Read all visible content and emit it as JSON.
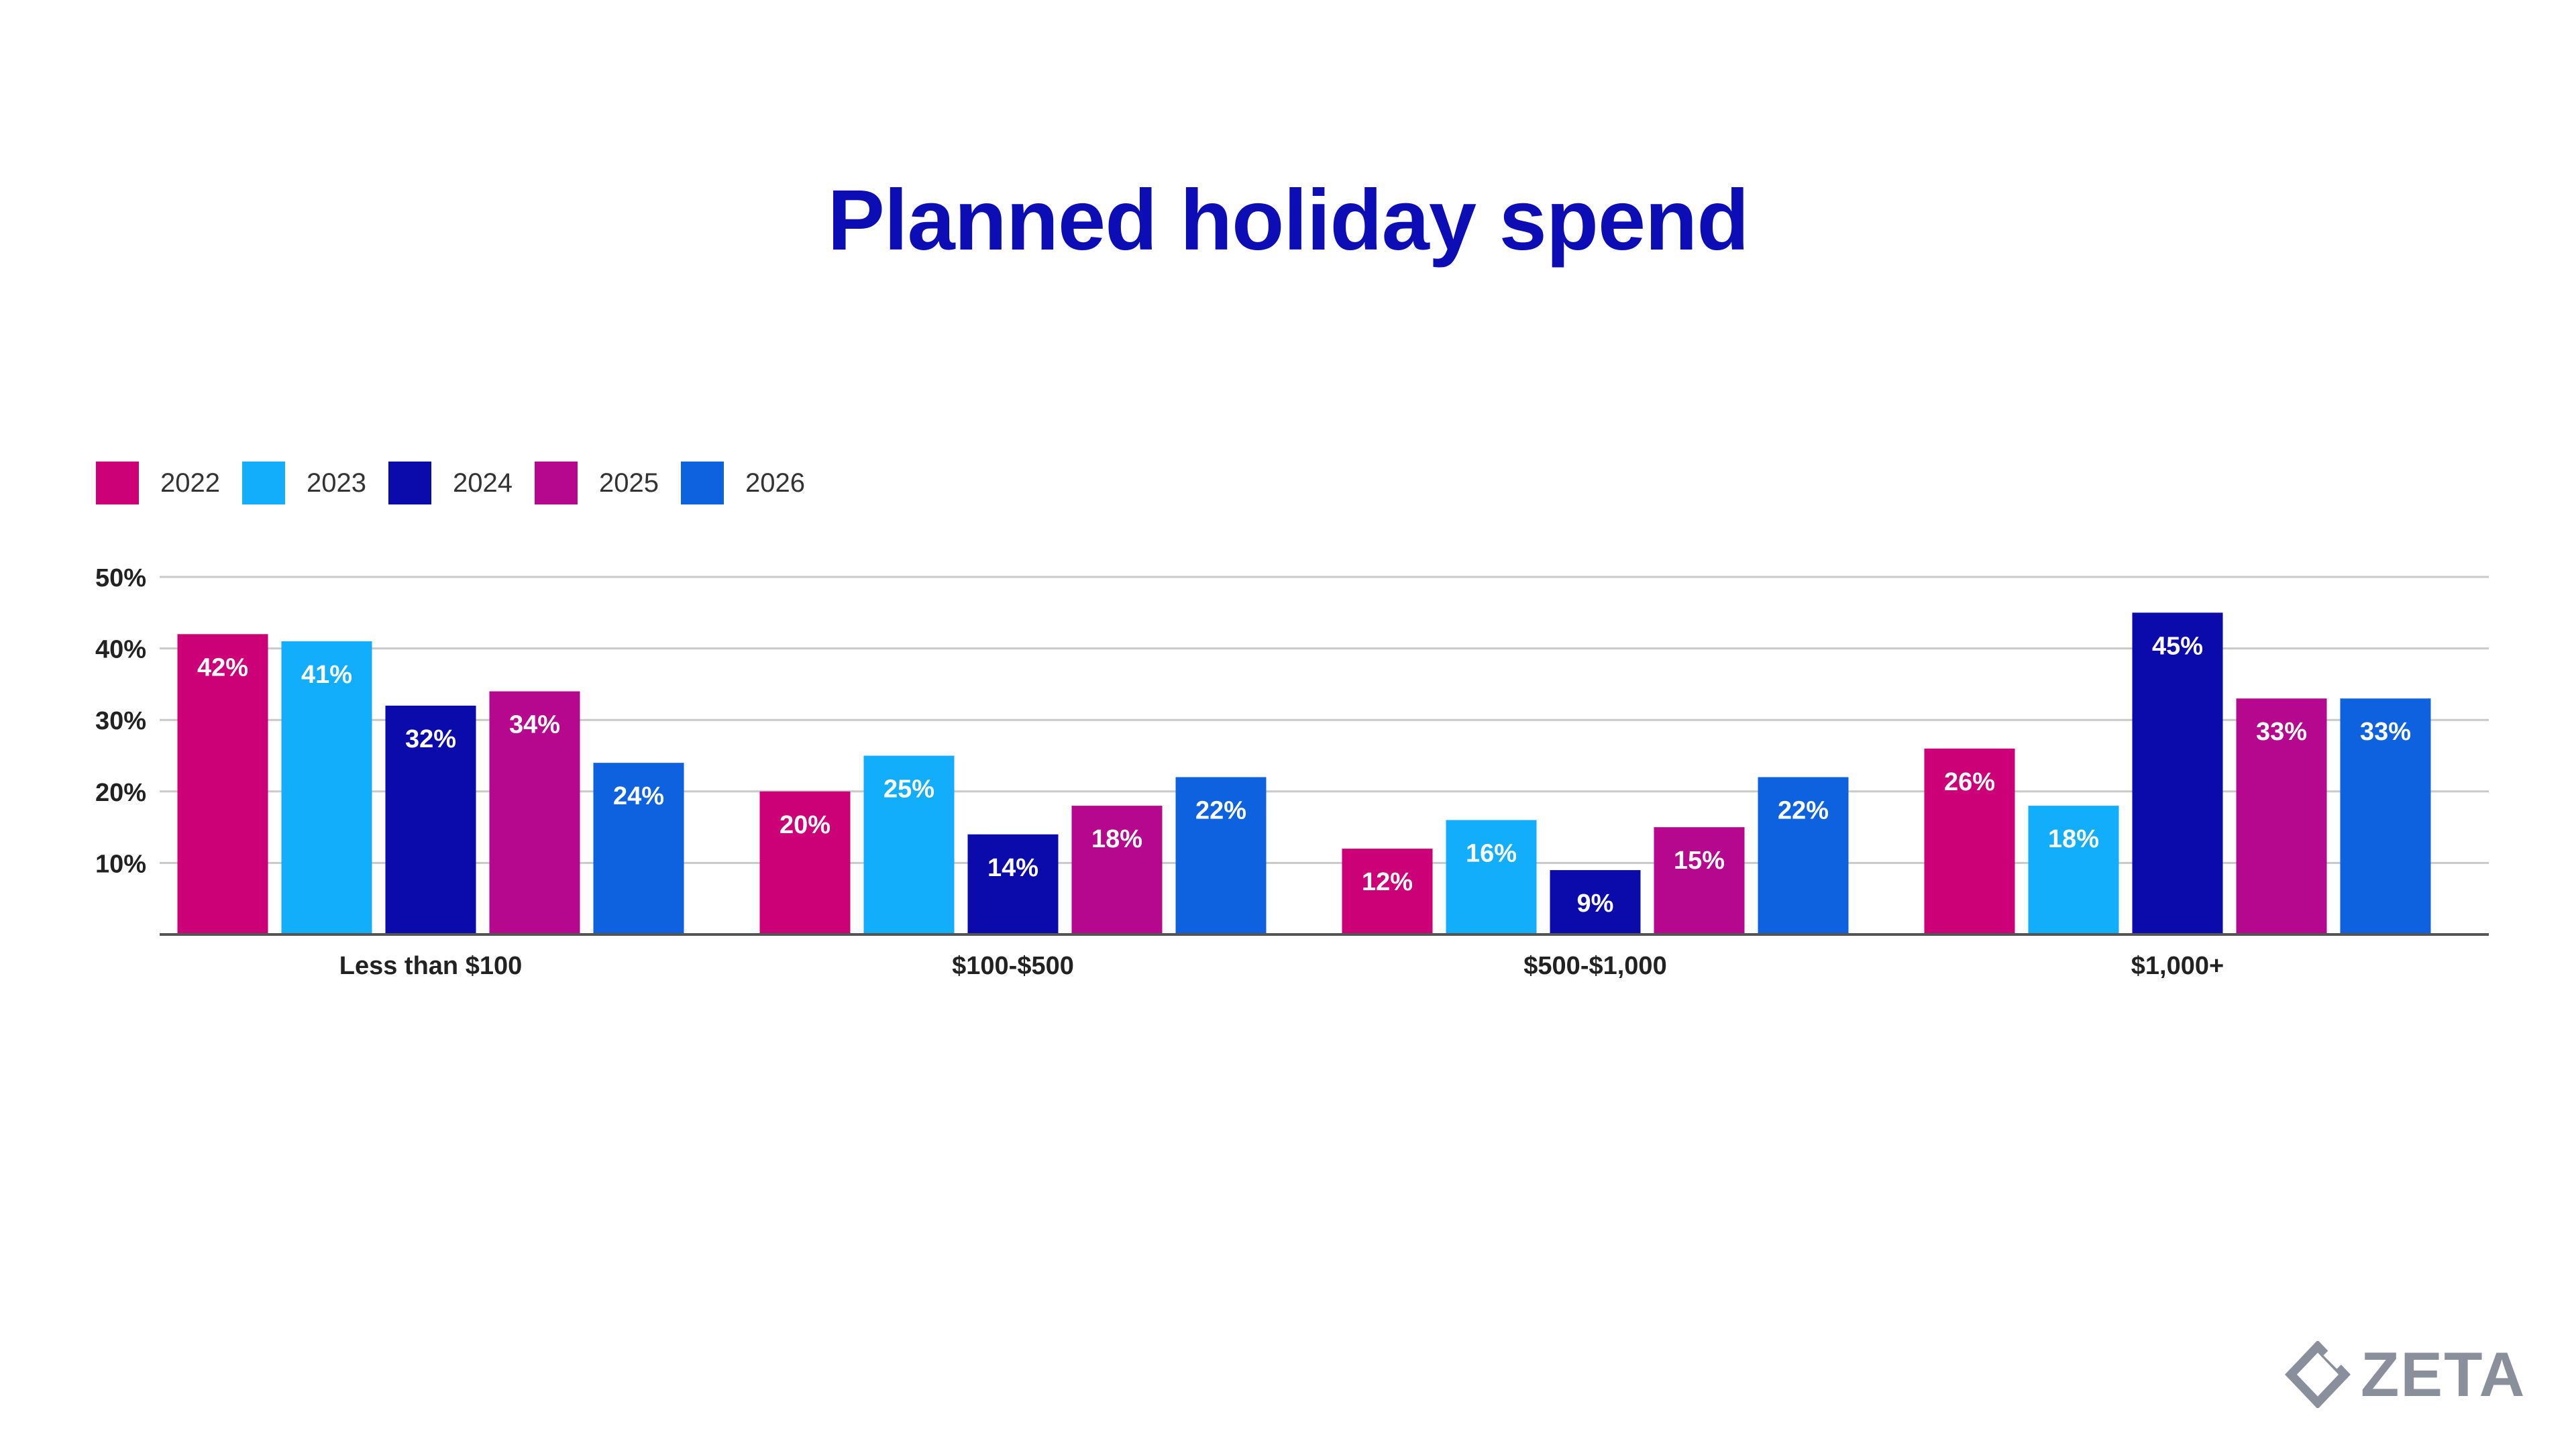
{
  "chart_data": {
    "type": "bar",
    "title": "Planned holiday spend",
    "xlabel": "",
    "ylabel": "",
    "categories": [
      "Less than $100",
      "$100-$500",
      "$500-$1,000",
      "$1,000+"
    ],
    "series": [
      {
        "name": "2022",
        "color": "#cc0077",
        "values": [
          42,
          20,
          12,
          26
        ],
        "labels": [
          "42%",
          "20%",
          "12%",
          "26%"
        ]
      },
      {
        "name": "2023",
        "color": "#12aefb",
        "values": [
          41,
          25,
          16,
          18
        ],
        "labels": [
          "41%",
          "25%",
          "16%",
          "18%"
        ]
      },
      {
        "name": "2024",
        "color": "#0b0aab",
        "values": [
          32,
          14,
          9,
          45
        ],
        "labels": [
          "32%",
          "14%",
          "9%",
          "45%"
        ]
      },
      {
        "name": "2025",
        "color": "#b5088f",
        "values": [
          34,
          18,
          15,
          33
        ],
        "labels": [
          "34%",
          "18%",
          "15%",
          "33%"
        ]
      },
      {
        "name": "2026",
        "color": "#0f62df",
        "values": [
          24,
          22,
          22,
          33
        ],
        "labels": [
          "24%",
          "22%",
          "22%",
          "33%"
        ]
      }
    ],
    "ylim": [
      0,
      50
    ],
    "yticks": [
      10,
      20,
      30,
      40,
      50
    ],
    "ytick_labels": [
      "10%",
      "20%",
      "30%",
      "40%",
      "50%"
    ],
    "grid": true,
    "legend_position": "top-left"
  },
  "logo": {
    "text": "ZETA",
    "color": "#8a8f9c"
  }
}
